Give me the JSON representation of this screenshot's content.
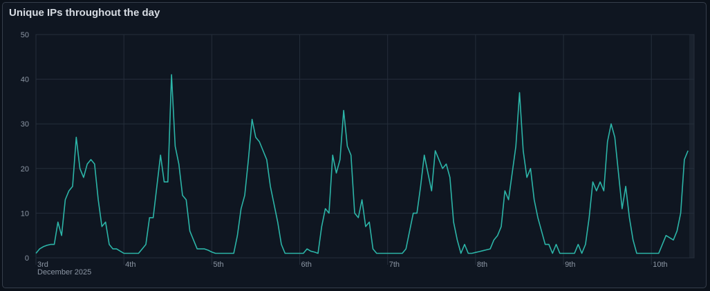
{
  "panel": {
    "title": "Unique IPs throughout the day"
  },
  "colors": {
    "line": "#2cb5a8",
    "grid": "#252e3b",
    "background": "#0f1621",
    "text": "#8c96a4"
  },
  "chart_data": {
    "type": "line",
    "title": "Unique IPs throughout the day",
    "xlabel": "",
    "ylabel": "",
    "x_start": "2025-12-03T00:00",
    "x_step": "1h",
    "xlim": [
      "2025-12-03T00:00",
      "2025-12-10T10:20"
    ],
    "ylim": [
      0,
      50
    ],
    "grid": true,
    "x_ticks": [
      {
        "date": "2025-12-03",
        "label": "3rd",
        "sublabel": "December 2025"
      },
      {
        "date": "2025-12-04",
        "label": "4th"
      },
      {
        "date": "2025-12-05",
        "label": "5th"
      },
      {
        "date": "2025-12-06",
        "label": "6th"
      },
      {
        "date": "2025-12-07",
        "label": "7th"
      },
      {
        "date": "2025-12-08",
        "label": "8th"
      },
      {
        "date": "2025-12-09",
        "label": "9th"
      },
      {
        "date": "2025-12-10",
        "label": "10th"
      }
    ],
    "y_ticks": [
      0,
      10,
      20,
      30,
      40,
      50
    ],
    "series": [
      {
        "values": [
          1,
          2,
          2.5,
          2.8,
          3,
          3,
          8,
          5,
          13,
          15,
          16,
          27,
          20,
          18,
          21,
          22,
          21,
          13,
          7,
          8,
          3,
          2,
          2,
          1.5,
          1,
          1,
          1,
          1,
          1,
          2,
          3,
          9,
          9,
          16,
          23,
          17,
          17,
          41,
          25,
          21,
          14,
          13,
          6,
          4,
          2,
          2,
          2,
          1.7,
          1.3,
          1,
          1,
          1,
          1,
          1,
          1,
          5,
          11,
          14,
          22,
          31,
          27,
          26,
          24,
          22,
          16,
          12,
          8,
          3,
          1,
          1,
          1,
          1,
          1,
          1,
          2,
          1.5,
          1.3,
          1,
          7,
          11,
          10,
          23,
          19,
          22,
          33,
          25,
          23,
          10,
          9,
          13,
          7,
          8,
          2,
          1,
          1,
          1,
          1,
          1,
          1,
          1,
          1,
          2,
          6,
          10,
          10,
          16,
          23,
          19,
          15,
          24,
          22,
          20,
          21,
          18,
          8,
          4,
          1,
          3,
          1,
          1,
          1.2,
          1.4,
          1.6,
          1.8,
          2,
          4,
          5,
          7,
          15,
          13,
          19,
          25,
          37,
          24,
          18,
          20,
          13,
          9,
          6,
          3,
          3,
          1,
          3,
          1,
          1,
          1,
          1,
          1,
          3,
          1,
          3,
          9,
          17,
          15,
          17,
          15,
          26,
          30,
          27,
          19,
          11,
          16,
          9,
          4,
          1,
          1,
          1,
          1,
          1,
          1,
          1,
          3,
          5,
          4.5,
          4,
          6,
          10,
          22,
          24
        ]
      }
    ]
  }
}
